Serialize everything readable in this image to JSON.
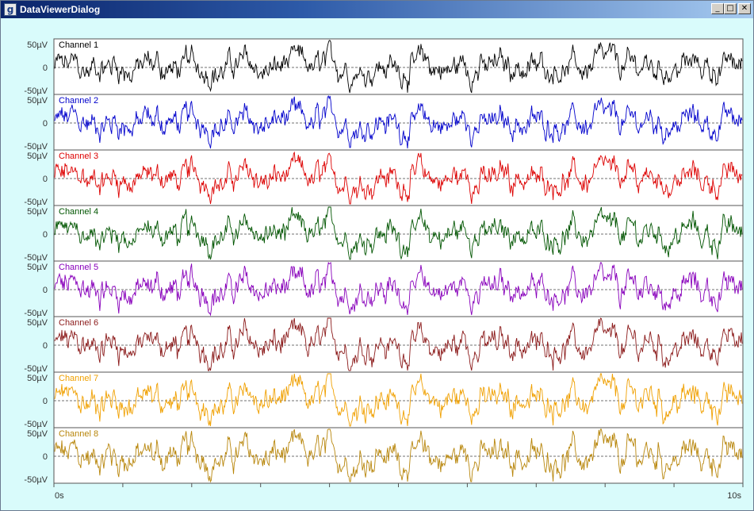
{
  "window": {
    "title": "DataViewerDialog",
    "icon": "g-app-icon",
    "controls": [
      "minimize",
      "maximize",
      "close"
    ]
  },
  "plot": {
    "y_top_label": "50µV",
    "y_mid_label": "0",
    "y_bottom_label": "-50µV",
    "x_start_label": "0s",
    "x_end_label": "10s",
    "x_range_seconds": [
      0,
      10
    ],
    "y_range_microvolts": [
      -50,
      50
    ],
    "channels": [
      {
        "name": "Channel 1",
        "color": "#000000"
      },
      {
        "name": "Channel 2",
        "color": "#0000cc"
      },
      {
        "name": "Channel 3",
        "color": "#dd0000"
      },
      {
        "name": "Channel 4",
        "color": "#005500"
      },
      {
        "name": "Channel 5",
        "color": "#8800bb"
      },
      {
        "name": "Channel 6",
        "color": "#8b1a1a"
      },
      {
        "name": "Channel 7",
        "color": "#f0a000"
      },
      {
        "name": "Channel 8",
        "color": "#b8860b"
      }
    ]
  }
}
